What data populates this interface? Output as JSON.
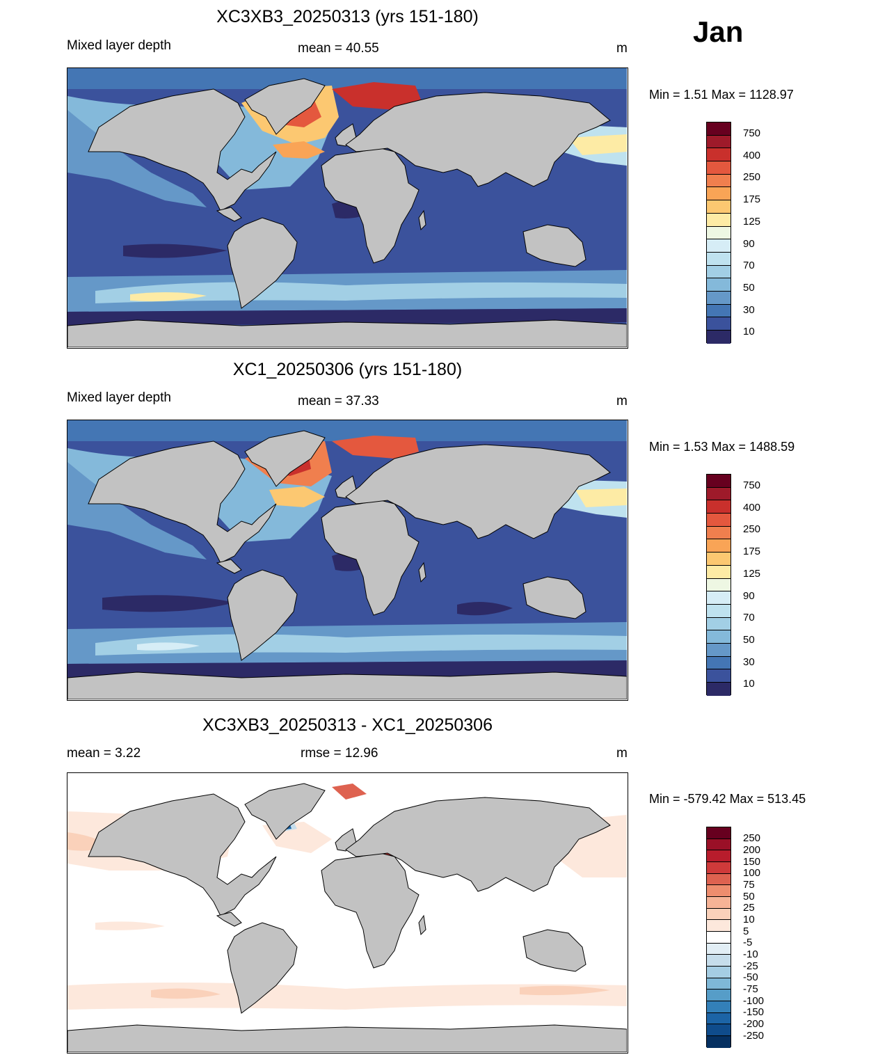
{
  "month": "Jan",
  "panels": [
    {
      "title": "XC3XB3_20250313 (yrs 151-180)",
      "left": "Mixed layer depth",
      "center": "mean =  40.55",
      "unit": "m",
      "minmax": "Min =    1.51 Max = 1128.97",
      "legend": {
        "colors": [
          "#67001f",
          "#9e1a2a",
          "#c9302c",
          "#e4583e",
          "#f07f4e",
          "#f9a456",
          "#fcc871",
          "#fdeba5",
          "#eef7e3",
          "#d6edf6",
          "#bfe2ef",
          "#a2cfe5",
          "#84b9da",
          "#6598c8",
          "#4476b4",
          "#3b529c",
          "#2c2a66"
        ],
        "labels": [
          "750",
          "400",
          "250",
          "175",
          "125",
          "90",
          "70",
          "50",
          "30",
          "10"
        ]
      }
    },
    {
      "title": "XC1_20250306 (yrs 151-180)",
      "left": "Mixed layer depth",
      "center": "mean =  37.33",
      "unit": "m",
      "minmax": "Min =    1.53 Max = 1488.59",
      "legend": {
        "colors": [
          "#67001f",
          "#9e1a2a",
          "#c9302c",
          "#e4583e",
          "#f07f4e",
          "#f9a456",
          "#fcc871",
          "#fdeba5",
          "#eef7e3",
          "#d6edf6",
          "#bfe2ef",
          "#a2cfe5",
          "#84b9da",
          "#6598c8",
          "#4476b4",
          "#3b529c",
          "#2c2a66"
        ],
        "labels": [
          "750",
          "400",
          "250",
          "175",
          "125",
          "90",
          "70",
          "50",
          "30",
          "10"
        ]
      }
    },
    {
      "title": "XC3XB3_20250313 - XC1_20250306",
      "left": "mean =   3.22",
      "center": "rmse =  12.96",
      "unit": "m",
      "minmax": "Min = -579.42 Max = 513.45",
      "legend": {
        "colors": [
          "#67001f",
          "#9a1027",
          "#b81c2c",
          "#cf3a3a",
          "#de6250",
          "#ee8d6e",
          "#f6b396",
          "#fad1ba",
          "#fde8dc",
          "#ffffff",
          "#e2eef5",
          "#c6ddeb",
          "#a5cde3",
          "#7fb8d7",
          "#569dc8",
          "#3380b9",
          "#1c64a6",
          "#0f4c8c",
          "#053061"
        ],
        "labels": [
          "250",
          "200",
          "150",
          "100",
          "75",
          "50",
          "25",
          "10",
          "5",
          "-5",
          "-10",
          "-25",
          "-50",
          "-75",
          "-100",
          "-150",
          "-200",
          "-250"
        ]
      }
    }
  ]
}
